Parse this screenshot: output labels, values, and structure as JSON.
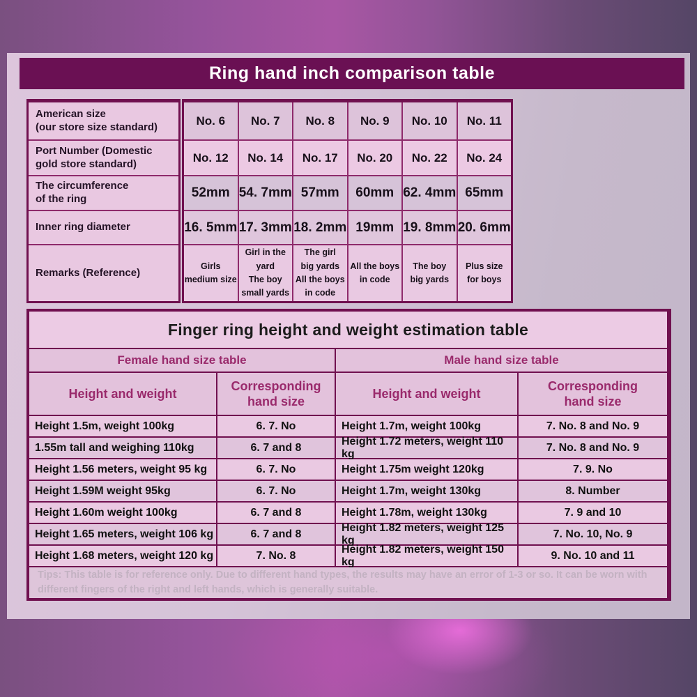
{
  "colors": {
    "title_bar_bg": "#6a1053",
    "table_border": "#70104f",
    "cell_pink": "#e8c7e0",
    "header_text_magenta": "#9a2a6c",
    "tips_text": "#c3b2c2",
    "background_purple": "#95539b"
  },
  "table1": {
    "title": "Ring hand inch comparison table",
    "rows": [
      {
        "label": "American size\n(our store size standard)",
        "values": [
          "No. 6",
          "No. 7",
          "No. 8",
          "No. 9",
          "No. 10",
          "No. 11"
        ]
      },
      {
        "label": "Port Number (Domestic\ngold store standard)",
        "values": [
          "No. 12",
          "No. 14",
          "No. 17",
          "No. 20",
          "No. 22",
          "No. 24"
        ]
      },
      {
        "label": "The circumference\nof the ring",
        "values": [
          "52mm",
          "54. 7mm",
          "57mm",
          "60mm",
          "62. 4mm",
          "65mm"
        ]
      },
      {
        "label": "Inner ring diameter",
        "values": [
          "16. 5mm",
          "17. 3mm",
          "18. 2mm",
          "19mm",
          "19. 8mm",
          "20. 6mm"
        ]
      },
      {
        "label": "Remarks (Reference)",
        "values": [
          "Girls\nmedium size",
          "Girl in the yard\nThe boy\nsmall yards",
          "The girl\nbig yards\nAll the boys\nin code",
          "All the boys\nin code",
          "The boy\nbig yards",
          "Plus size\nfor boys"
        ]
      }
    ]
  },
  "table2": {
    "title": "Finger ring height and weight estimation table",
    "female_header": "Female hand size table",
    "male_header": "Male hand size table",
    "col_headers": [
      "Height and weight",
      "Corresponding\nhand size",
      "Height and weight",
      "Corresponding\nhand size"
    ],
    "rows": [
      [
        "Height 1.5m, weight 100kg",
        "6. 7. No",
        "Height 1.7m, weight 100kg",
        "7. No. 8 and No. 9"
      ],
      [
        "1.55m tall and weighing 110kg",
        "6. 7 and 8",
        "Height 1.72 meters, weight 110 kg",
        "7. No. 8 and No. 9"
      ],
      [
        "Height 1.56 meters, weight 95 kg",
        "6. 7. No",
        "Height 1.75m weight 120kg",
        "7. 9. No"
      ],
      [
        "Height 1.59M weight 95kg",
        "6. 7. No",
        "Height 1.7m, weight 130kg",
        "8. Number"
      ],
      [
        "Height 1.60m weight 100kg",
        "6. 7 and 8",
        "Height 1.78m, weight 130kg",
        "7. 9 and 10"
      ],
      [
        "Height 1.65 meters, weight 106 kg",
        "6. 7 and 8",
        "Height 1.82 meters, weight 125 kg",
        "7. No. 10, No. 9"
      ],
      [
        "Height 1.68 meters, weight 120 kg",
        "7. No. 8",
        "Height 1.82 meters, weight 150 kg",
        "9. No. 10 and 11"
      ]
    ],
    "tips": "Tips: This table is for reference only. Due to different hand types, the results may have an error of 1-3 or so. It can be worn with different fingers of the right and left hands, which is generally suitable."
  }
}
